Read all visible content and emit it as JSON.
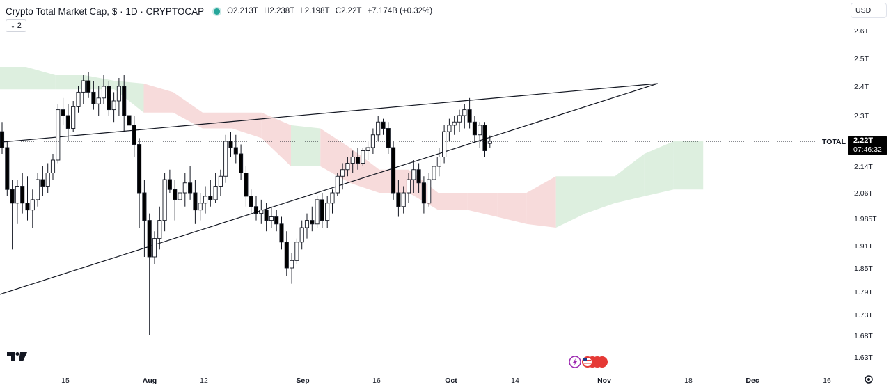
{
  "header": {
    "title": "Crypto Total Market Cap, $ · 1D · CRYPTOCAP",
    "open": "O2.213T",
    "high": "H2.238T",
    "low": "L2.198T",
    "close": "C2.22T",
    "change": "+7.174B (+0.32%)",
    "indicators_collapse": "2"
  },
  "currency_button": "USD",
  "colors": {
    "up": "#ffffff",
    "down": "#000000",
    "cloud_bull": "#d7ecd9",
    "cloud_bear": "#f6d5d5",
    "accent": "#26a69a"
  },
  "chart_data": {
    "type": "candlestick",
    "symbol": "TOTAL",
    "last_price": "2.22T",
    "countdown": "07:46:32",
    "y_ticks": [
      "2.6T",
      "2.5T",
      "2.4T",
      "2.3T",
      "2.22T",
      "2.14T",
      "2.06T",
      "1.985T",
      "1.91T",
      "1.85T",
      "1.79T",
      "1.73T",
      "1.68T",
      "1.63T"
    ],
    "x_ticks": [
      "15",
      "Aug",
      "12",
      "Sep",
      "16",
      "Oct",
      "14",
      "Nov",
      "18",
      "Dec",
      "16"
    ],
    "ylim": [
      1.63,
      2.6
    ],
    "candles": [
      [
        2.25,
        2.28,
        2.18,
        2.2
      ],
      [
        2.2,
        2.22,
        2.05,
        2.07
      ],
      [
        2.07,
        2.1,
        1.9,
        2.03
      ],
      [
        2.03,
        2.1,
        1.97,
        2.08
      ],
      [
        2.08,
        2.12,
        2.0,
        2.03
      ],
      [
        2.03,
        2.11,
        1.98,
        2.01
      ],
      [
        2.01,
        2.07,
        1.96,
        2.04
      ],
      [
        2.04,
        2.12,
        2.02,
        2.1
      ],
      [
        2.1,
        2.14,
        2.05,
        2.08
      ],
      [
        2.08,
        2.15,
        2.06,
        2.12
      ],
      [
        2.12,
        2.18,
        2.1,
        2.16
      ],
      [
        2.16,
        2.34,
        2.15,
        2.32
      ],
      [
        2.32,
        2.36,
        2.27,
        2.3
      ],
      [
        2.3,
        2.34,
        2.22,
        2.26
      ],
      [
        2.26,
        2.35,
        2.25,
        2.33
      ],
      [
        2.33,
        2.4,
        2.31,
        2.38
      ],
      [
        2.38,
        2.44,
        2.34,
        2.42
      ],
      [
        2.42,
        2.45,
        2.36,
        2.38
      ],
      [
        2.38,
        2.42,
        2.32,
        2.34
      ],
      [
        2.34,
        2.4,
        2.3,
        2.36
      ],
      [
        2.36,
        2.44,
        2.34,
        2.4
      ],
      [
        2.4,
        2.42,
        2.3,
        2.32
      ],
      [
        2.32,
        2.38,
        2.28,
        2.35
      ],
      [
        2.35,
        2.43,
        2.3,
        2.4
      ],
      [
        2.4,
        2.44,
        2.25,
        2.3
      ],
      [
        2.3,
        2.32,
        2.24,
        2.27
      ],
      [
        2.27,
        2.3,
        2.17,
        2.21
      ],
      [
        2.21,
        2.23,
        1.96,
        2.06
      ],
      [
        2.06,
        2.1,
        1.88,
        1.98
      ],
      [
        1.98,
        2.0,
        1.68,
        1.88
      ],
      [
        1.88,
        1.95,
        1.86,
        1.93
      ],
      [
        1.93,
        2.02,
        1.9,
        1.98
      ],
      [
        1.98,
        2.12,
        1.95,
        2.1
      ],
      [
        2.1,
        2.13,
        2.06,
        2.07
      ],
      [
        2.07,
        2.1,
        1.98,
        2.04
      ],
      [
        2.04,
        2.08,
        2.0,
        2.06
      ],
      [
        2.06,
        2.12,
        2.02,
        2.09
      ],
      [
        2.09,
        2.14,
        2.04,
        2.06
      ],
      [
        2.06,
        2.1,
        1.97,
        2.01
      ],
      [
        2.01,
        2.06,
        1.98,
        2.03
      ],
      [
        2.03,
        2.08,
        2.0,
        2.05
      ],
      [
        2.05,
        2.1,
        2.02,
        2.04
      ],
      [
        2.04,
        2.12,
        2.03,
        2.08
      ],
      [
        2.08,
        2.13,
        2.05,
        2.11
      ],
      [
        2.11,
        2.24,
        2.09,
        2.22
      ],
      [
        2.22,
        2.25,
        2.17,
        2.2
      ],
      [
        2.2,
        2.24,
        2.15,
        2.18
      ],
      [
        2.18,
        2.21,
        2.1,
        2.12
      ],
      [
        2.12,
        2.14,
        2.02,
        2.05
      ],
      [
        2.05,
        2.07,
        2.0,
        2.02
      ],
      [
        2.02,
        2.05,
        1.98,
        2.0
      ],
      [
        2.0,
        2.04,
        1.97,
        2.01
      ],
      [
        2.01,
        2.03,
        1.95,
        1.98
      ],
      [
        1.98,
        2.02,
        1.96,
        1.99
      ],
      [
        1.99,
        2.01,
        1.95,
        1.97
      ],
      [
        1.97,
        1.99,
        1.9,
        1.92
      ],
      [
        1.92,
        1.95,
        1.83,
        1.85
      ],
      [
        1.85,
        1.89,
        1.81,
        1.87
      ],
      [
        1.87,
        1.93,
        1.86,
        1.92
      ],
      [
        1.92,
        1.98,
        1.9,
        1.96
      ],
      [
        1.96,
        2.0,
        1.93,
        1.98
      ],
      [
        1.98,
        2.02,
        1.95,
        1.97
      ],
      [
        1.97,
        2.05,
        1.96,
        2.04
      ],
      [
        2.04,
        2.06,
        1.96,
        1.98
      ],
      [
        1.98,
        2.05,
        1.96,
        2.03
      ],
      [
        2.03,
        2.07,
        2.0,
        2.06
      ],
      [
        2.06,
        2.12,
        2.05,
        2.11
      ],
      [
        2.11,
        2.15,
        2.07,
        2.13
      ],
      [
        2.13,
        2.17,
        2.11,
        2.15
      ],
      [
        2.15,
        2.19,
        2.12,
        2.17
      ],
      [
        2.17,
        2.2,
        2.13,
        2.15
      ],
      [
        2.15,
        2.2,
        2.14,
        2.19
      ],
      [
        2.19,
        2.22,
        2.16,
        2.2
      ],
      [
        2.2,
        2.26,
        2.18,
        2.24
      ],
      [
        2.24,
        2.3,
        2.22,
        2.28
      ],
      [
        2.28,
        2.29,
        2.24,
        2.26
      ],
      [
        2.26,
        2.28,
        2.18,
        2.2
      ],
      [
        2.2,
        2.22,
        2.04,
        2.06
      ],
      [
        2.06,
        2.1,
        1.99,
        2.02
      ],
      [
        2.02,
        2.08,
        2.0,
        2.06
      ],
      [
        2.06,
        2.12,
        2.03,
        2.1
      ],
      [
        2.1,
        2.16,
        2.06,
        2.13
      ],
      [
        2.13,
        2.15,
        2.06,
        2.09
      ],
      [
        2.09,
        2.11,
        2.0,
        2.03
      ],
      [
        2.03,
        2.12,
        2.02,
        2.1
      ],
      [
        2.1,
        2.16,
        2.08,
        2.14
      ],
      [
        2.14,
        2.2,
        2.11,
        2.17
      ],
      [
        2.17,
        2.27,
        2.15,
        2.25
      ],
      [
        2.25,
        2.29,
        2.22,
        2.27
      ],
      [
        2.27,
        2.3,
        2.24,
        2.28
      ],
      [
        2.28,
        2.32,
        2.25,
        2.3
      ],
      [
        2.3,
        2.34,
        2.26,
        2.32
      ],
      [
        2.32,
        2.36,
        2.26,
        2.28
      ],
      [
        2.28,
        2.3,
        2.22,
        2.24
      ],
      [
        2.24,
        2.28,
        2.2,
        2.27
      ],
      [
        2.27,
        2.28,
        2.17,
        2.19
      ],
      [
        2.213,
        2.238,
        2.198,
        2.22
      ]
    ],
    "cloud_top": [
      2.47,
      2.47,
      2.44,
      2.44,
      2.42,
      2.41,
      2.38,
      2.31,
      2.31,
      2.31,
      2.27,
      2.26,
      2.2,
      2.13,
      2.13,
      2.06,
      2.06,
      2.06,
      2.06,
      2.11,
      2.11,
      2.11,
      2.18,
      2.22,
      2.22
    ],
    "cloud_bottom": [
      2.39,
      2.39,
      2.39,
      2.39,
      2.39,
      2.31,
      2.31,
      2.26,
      2.26,
      2.23,
      2.14,
      2.14,
      2.09,
      2.06,
      2.06,
      2.01,
      2.01,
      1.99,
      1.97,
      1.96,
      2.0,
      2.03,
      2.05,
      2.07,
      2.07
    ],
    "cloud_color": [
      "bull",
      "bull",
      "bull",
      "bull",
      "bull",
      "bear",
      "bear",
      "bear",
      "bear",
      "bear",
      "bull",
      "bear",
      "bear",
      "bear",
      "bear",
      "bear",
      "bear",
      "bear",
      "bear",
      "bull",
      "bull",
      "bull",
      "bull",
      "bull",
      "bull"
    ],
    "trendlines": [
      {
        "name": "upper",
        "from": [
          -26,
          2.18
        ],
        "to": [
          129,
          2.41
        ]
      },
      {
        "name": "lower",
        "from": [
          -31,
          1.66
        ],
        "to": [
          129,
          2.41
        ]
      }
    ],
    "grid": false,
    "legend": "none"
  }
}
